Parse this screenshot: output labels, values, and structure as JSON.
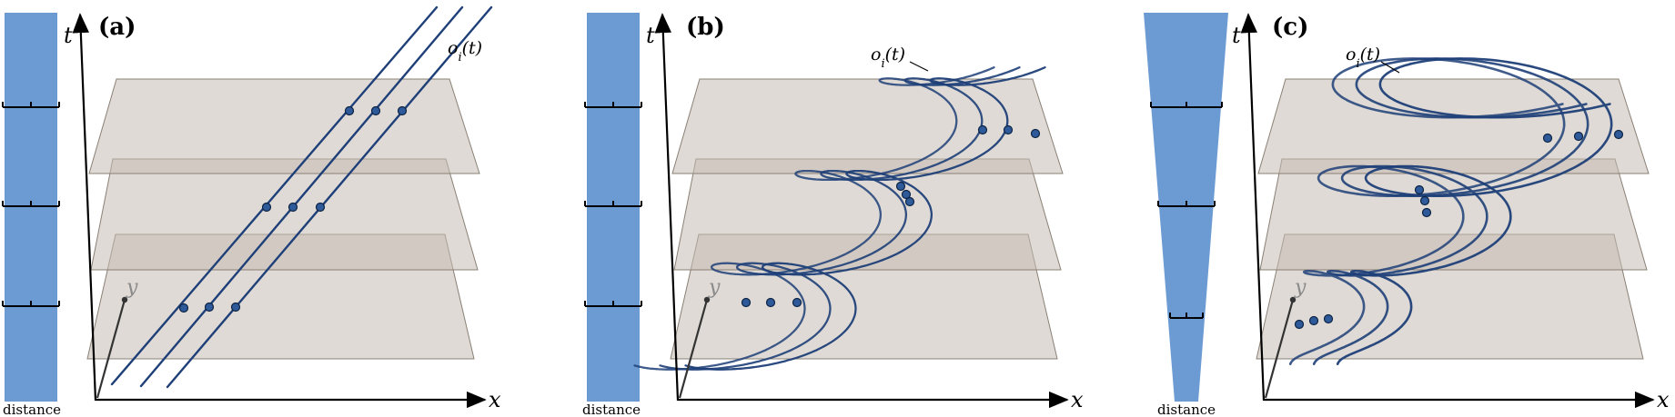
{
  "panels": [
    {
      "label": "(a)",
      "x_axis": "x",
      "t_axis": "t",
      "y_axis": "y",
      "curve_label": "o_i(t)",
      "curve_label_main": "o",
      "curve_label_sub": "i",
      "curve_label_arg": "(t)",
      "distance_label": "distance",
      "trajectory": "linear"
    },
    {
      "label": "(b)",
      "x_axis": "x",
      "t_axis": "t",
      "y_axis": "y",
      "curve_label_main": "o",
      "curve_label_sub": "i",
      "curve_label_arg": "(t)",
      "distance_label": "distance",
      "trajectory": "spiral-constant"
    },
    {
      "label": "(c)",
      "x_axis": "x",
      "t_axis": "t",
      "y_axis": "y",
      "curve_label_main": "o",
      "curve_label_sub": "i",
      "curve_label_arg": "(t)",
      "distance_label": "distance",
      "trajectory": "spiral-growing"
    }
  ],
  "colors": {
    "bar": "#6b9bd2",
    "plane": "#c5bcb3",
    "trajectory": "#1e3f78",
    "point": "#2f5a9a"
  }
}
